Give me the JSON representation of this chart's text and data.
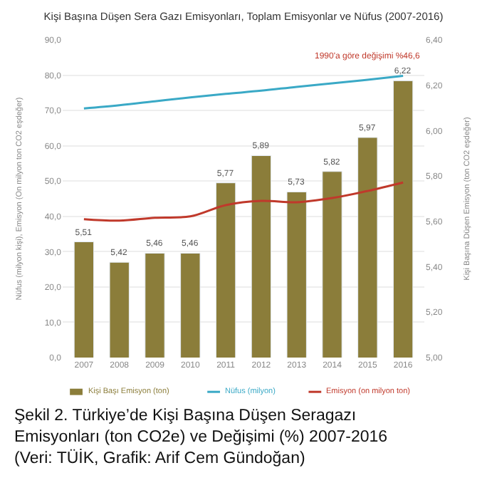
{
  "chart_data": {
    "type": "bar",
    "title": "Kişi Başına Düşen Sera Gazı Emisyonları, Toplam Emisyonlar ve Nüfus (2007-2016)",
    "categories": [
      "2007",
      "2008",
      "2009",
      "2010",
      "2011",
      "2012",
      "2013",
      "2014",
      "2015",
      "2016"
    ],
    "series": [
      {
        "name": "Kişi Başı Emisyon (ton)",
        "axis": "y2",
        "color": "#8b7d3a",
        "values": [
          5.51,
          5.42,
          5.46,
          5.46,
          5.77,
          5.89,
          5.73,
          5.82,
          5.97,
          6.22
        ],
        "value_labels": [
          "5,51",
          "5,42",
          "5,46",
          "5,46",
          "5,77",
          "5,89",
          "5,73",
          "5,82",
          "5,97",
          "6,22"
        ]
      },
      {
        "name": "Nüfus (milyon)",
        "type": "line",
        "color": "#3aa9c6",
        "values": [
          70.6,
          71.5,
          72.6,
          73.7,
          74.7,
          75.6,
          76.7,
          77.7,
          78.7,
          79.8
        ]
      },
      {
        "name": "Emisyon (on milyon ton)",
        "type": "line",
        "color": "#c0392b",
        "values": [
          39.2,
          38.8,
          39.6,
          40.0,
          43.2,
          44.4,
          44.0,
          45.2,
          47.2,
          49.6
        ]
      }
    ],
    "ylabel": "Nüfus (milyon kişi), Emisyon (On milyon ton CO2 eşdeğer)",
    "y2label": "Kişi Başına Düşen Emisyon (ton CO2 eşdeğer)",
    "ylim": [
      0,
      90
    ],
    "yticks": [
      {
        "value": 0,
        "label": "0,0"
      },
      {
        "value": 10,
        "label": "10,0"
      },
      {
        "value": 20,
        "label": "20,0"
      },
      {
        "value": 30,
        "label": "30,0"
      },
      {
        "value": 40,
        "label": "40,0"
      },
      {
        "value": 50,
        "label": "50,0"
      },
      {
        "value": 60,
        "label": "60,0"
      },
      {
        "value": 70,
        "label": "70,0"
      },
      {
        "value": 80,
        "label": "80,0"
      },
      {
        "value": 90,
        "label": "90,0"
      }
    ],
    "y2lim": [
      5.0,
      6.4
    ],
    "y2ticks": [
      {
        "value": 5.0,
        "label": "5,00"
      },
      {
        "value": 5.2,
        "label": "5,20"
      },
      {
        "value": 5.4,
        "label": "5,40"
      },
      {
        "value": 5.6,
        "label": "5,60"
      },
      {
        "value": 5.8,
        "label": "5,80"
      },
      {
        "value": 6.0,
        "label": "6,00"
      },
      {
        "value": 6.2,
        "label": "6,20"
      },
      {
        "value": 6.4,
        "label": "6,40"
      }
    ],
    "grid": "y",
    "legend": "bottom",
    "marker": "none",
    "line_style": "solid",
    "annotations": [
      "1990'a göre değişimi %46,6",
      "Şekil 2. Türkiye’de Kişi Başına Düşen Seragazı Emisyonları (ton CO2e) ve Değişimi (%) 2007-2016 (Veri: TÜİK, Grafik: Arif Cem Gündoğan)"
    ]
  }
}
